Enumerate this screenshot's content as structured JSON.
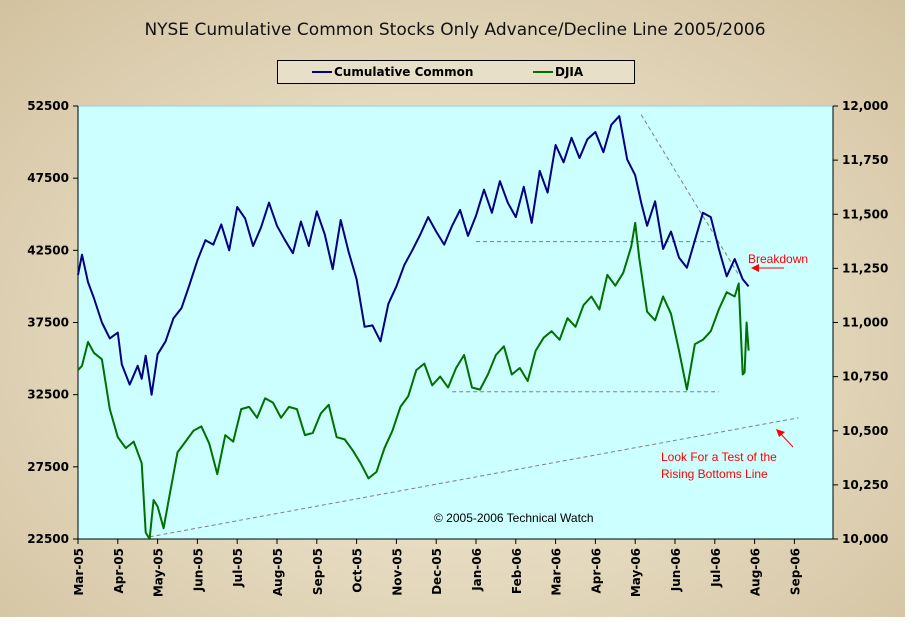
{
  "chart_data": {
    "type": "line",
    "title": "NYSE Cumulative Common Stocks Only Advance/Decline Line 2005/2006",
    "xlabel": "",
    "ylabel_left": "",
    "ylabel_right": "",
    "ylim_left": [
      22500,
      52500
    ],
    "ylim_right": [
      10000,
      12000
    ],
    "yticks_left": [
      "52500",
      "47500",
      "42500",
      "37500",
      "32500",
      "27500",
      "22500"
    ],
    "yticks_left_values": [
      52500,
      47500,
      42500,
      37500,
      32500,
      27500,
      22500
    ],
    "yticks_right": [
      "12,000",
      "11,750",
      "11,500",
      "11,250",
      "11,000",
      "10,750",
      "10,500",
      "10,250",
      "10,000"
    ],
    "yticks_right_values": [
      12000,
      11750,
      11500,
      11250,
      11000,
      10750,
      10500,
      10250,
      10000
    ],
    "x_categories": [
      "Mar-05",
      "Apr-05",
      "May-05",
      "Jun-05",
      "Jul-05",
      "Aug-05",
      "Sep-05",
      "Oct-05",
      "Nov-05",
      "Dec-05",
      "Jan-06",
      "Feb-06",
      "Mar-06",
      "Apr-06",
      "May-06",
      "Jun-06",
      "Jul-06",
      "Aug-06",
      "Sep-06"
    ],
    "x_unit": "months since Mar-05",
    "legend": {
      "position": "top-center",
      "entries": [
        "Cumulative Common",
        "DJIA"
      ]
    },
    "grid": false,
    "series": [
      {
        "name": "Cumulative Common",
        "axis": "left",
        "color": "#000080",
        "x": [
          0,
          0.1,
          0.25,
          0.4,
          0.6,
          0.8,
          1.0,
          1.1,
          1.3,
          1.5,
          1.6,
          1.7,
          1.85,
          2.0,
          2.2,
          2.4,
          2.6,
          2.8,
          3.0,
          3.2,
          3.4,
          3.6,
          3.8,
          4.0,
          4.2,
          4.4,
          4.6,
          4.8,
          5.0,
          5.2,
          5.4,
          5.6,
          5.8,
          6.0,
          6.2,
          6.4,
          6.6,
          6.8,
          7.0,
          7.2,
          7.4,
          7.6,
          7.8,
          8.0,
          8.2,
          8.4,
          8.6,
          8.8,
          9.0,
          9.2,
          9.4,
          9.6,
          9.8,
          10.0,
          10.2,
          10.4,
          10.6,
          10.8,
          11.0,
          11.2,
          11.4,
          11.6,
          11.8,
          12.0,
          12.2,
          12.4,
          12.6,
          12.8,
          13.0,
          13.2,
          13.4,
          13.6,
          13.8,
          14.0,
          14.15,
          14.3,
          14.5,
          14.7,
          14.9,
          15.1,
          15.3,
          15.5,
          15.7,
          15.9,
          16.1,
          16.3,
          16.5,
          16.7,
          16.85
        ],
        "values": [
          40800,
          42200,
          40300,
          39200,
          37500,
          36400,
          36800,
          34600,
          33200,
          34500,
          33600,
          35200,
          32500,
          35300,
          36200,
          37800,
          38500,
          40100,
          41800,
          43200,
          42900,
          44300,
          42500,
          45500,
          44700,
          42800,
          44100,
          45800,
          44200,
          43200,
          42300,
          44500,
          42800,
          45200,
          43600,
          41200,
          44600,
          42400,
          40500,
          37200,
          37300,
          36200,
          38800,
          40000,
          41500,
          42500,
          43600,
          44800,
          43800,
          42900,
          44200,
          45300,
          43500,
          44900,
          46700,
          45100,
          47300,
          45800,
          44800,
          46900,
          44400,
          48000,
          46500,
          49800,
          48600,
          50300,
          48900,
          50200,
          50700,
          49300,
          51200,
          51800,
          48800,
          47700,
          45800,
          44200,
          45900,
          42600,
          43800,
          42000,
          41300,
          43200,
          45100,
          44800,
          42600,
          40700,
          41900,
          40500,
          40000
        ]
      },
      {
        "name": "DJIA",
        "axis": "right",
        "color": "#007000",
        "x": [
          0,
          0.1,
          0.25,
          0.4,
          0.6,
          0.8,
          1.0,
          1.2,
          1.4,
          1.6,
          1.7,
          1.8,
          1.9,
          2.0,
          2.15,
          2.3,
          2.5,
          2.7,
          2.9,
          3.1,
          3.3,
          3.5,
          3.7,
          3.9,
          4.1,
          4.3,
          4.5,
          4.7,
          4.9,
          5.1,
          5.3,
          5.5,
          5.7,
          5.9,
          6.1,
          6.3,
          6.5,
          6.7,
          6.9,
          7.1,
          7.3,
          7.5,
          7.7,
          7.9,
          8.1,
          8.3,
          8.5,
          8.7,
          8.9,
          9.1,
          9.3,
          9.5,
          9.7,
          9.9,
          10.1,
          10.3,
          10.5,
          10.7,
          10.9,
          11.1,
          11.3,
          11.5,
          11.7,
          11.9,
          12.1,
          12.3,
          12.5,
          12.7,
          12.9,
          13.1,
          13.3,
          13.5,
          13.7,
          13.9,
          14.0,
          14.1,
          14.3,
          14.5,
          14.7,
          14.9,
          15.1,
          15.3,
          15.5,
          15.7,
          15.9,
          16.1,
          16.3,
          16.5,
          16.6,
          16.7,
          16.75,
          16.8,
          16.85
        ],
        "values": [
          10780,
          10800,
          10910,
          10860,
          10830,
          10600,
          10470,
          10420,
          10450,
          10350,
          10030,
          10000,
          10180,
          10150,
          10050,
          10200,
          10400,
          10450,
          10500,
          10520,
          10440,
          10300,
          10480,
          10450,
          10600,
          10610,
          10560,
          10650,
          10630,
          10560,
          10610,
          10600,
          10480,
          10490,
          10580,
          10620,
          10470,
          10460,
          10410,
          10350,
          10280,
          10310,
          10420,
          10500,
          10610,
          10660,
          10780,
          10810,
          10710,
          10750,
          10700,
          10790,
          10850,
          10700,
          10690,
          10760,
          10850,
          10890,
          10760,
          10790,
          10730,
          10870,
          10930,
          10960,
          10920,
          11020,
          10980,
          11080,
          11120,
          11060,
          11220,
          11170,
          11230,
          11350,
          11460,
          11300,
          11050,
          11010,
          11120,
          11040,
          10870,
          10690,
          10900,
          10920,
          10960,
          11060,
          11140,
          11120,
          11180,
          10760,
          10770,
          11000,
          10870
        ]
      }
    ],
    "reference_lines": [
      {
        "name": "cumulative-support-line",
        "axis": "left",
        "from": [
          10.0,
          43100
        ],
        "to": [
          15.9,
          43100
        ],
        "style": "dashed"
      },
      {
        "name": "djia-support-line",
        "axis": "right",
        "from": [
          9.4,
          10680
        ],
        "to": [
          16.1,
          10680
        ],
        "style": "dashed"
      },
      {
        "name": "cumulative-downtrend-line",
        "axis": "left",
        "from": [
          14.15,
          51900
        ],
        "to": [
          16.6,
          40800
        ],
        "style": "dashed"
      },
      {
        "name": "rising-bottoms-line",
        "axis": "right",
        "from": [
          1.8,
          10010
        ],
        "to": [
          18.1,
          10560
        ],
        "style": "dashed"
      }
    ],
    "annotations": [
      {
        "text": "Breakdown",
        "color": "#ff0000",
        "near": "right of Jul-06 Cumulative Common low"
      },
      {
        "text_lines": [
          "Look For a Test of the",
          "Rising Bottoms Line"
        ],
        "color": "#ff0000",
        "near": "below rising bottoms line, Jul-06 to Sep-06"
      },
      {
        "text": "© 2005-2006 Technical Watch",
        "color": "#000000",
        "near": "bottom center"
      }
    ]
  }
}
